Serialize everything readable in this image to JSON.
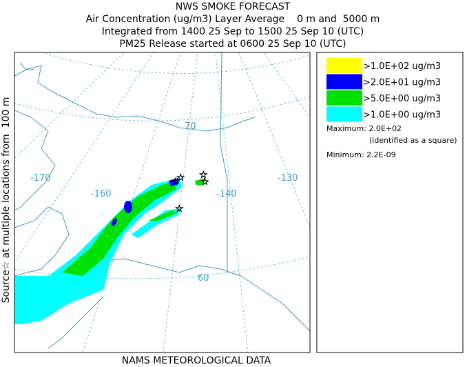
{
  "header": {
    "title": "NWS SMOKE FORECAST",
    "lines": [
      "Air Concentration (ug/m3) Layer Average    0 m and  5000 m",
      "Integrated from 1400 25 Sep to 1500 25 Sep 10 (UTC)",
      "PM25 Release started at 0600 25 Sep 10 (UTC)"
    ]
  },
  "map": {
    "side_label": "Source☆ at multiple locations from  100 m",
    "labels": [
      "-170",
      "-160",
      "-140",
      "-130",
      "70",
      "60"
    ],
    "footer": "NAMS METEOROLOGICAL DATA"
  },
  "legend": {
    "items": [
      {
        "label": ">1.0E+02 ug/m3",
        "color": "#ffff00"
      },
      {
        "label": ">2.0E+01 ug/m3",
        "color": "#0000ff"
      },
      {
        "label": ">5.0E+00 ug/m3",
        "color": "#00e000"
      },
      {
        "label": ">1.0E+00 ug/m3",
        "color": "#00ffff"
      }
    ],
    "maximum": "Maximum: 2.0E+02",
    "maximum_note": "(identified as a square)",
    "minimum": "Minimum: 2.2E-09"
  }
}
